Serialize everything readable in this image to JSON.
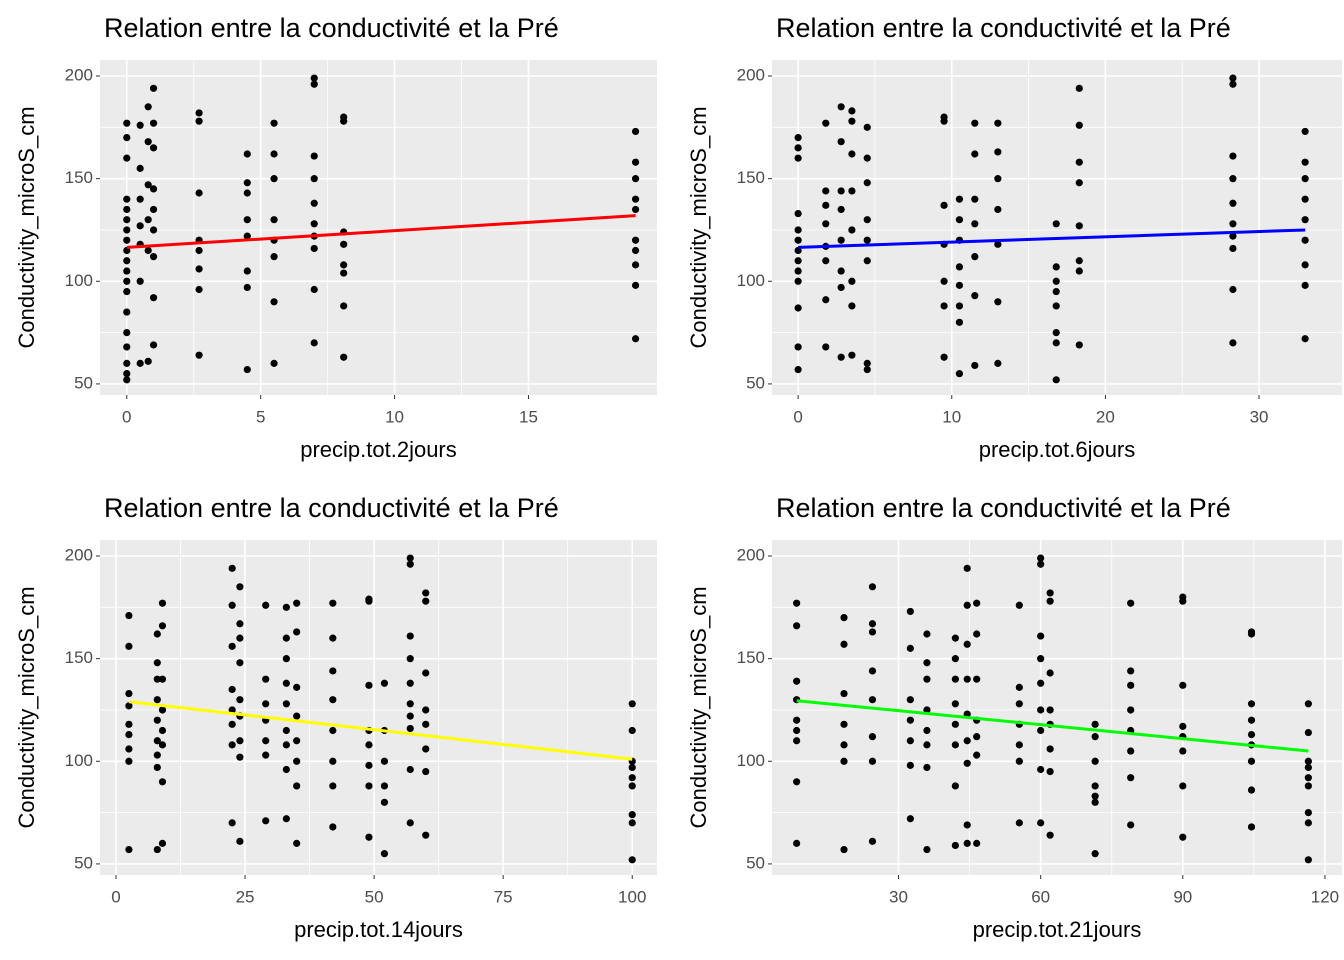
{
  "chart_data": [
    {
      "type": "scatter",
      "title": "Relation entre la conductivité et la Pré",
      "xlabel": "precip.tot.2jours",
      "ylabel": "Conductivity_microS_cm",
      "x": [
        0,
        0,
        0,
        0,
        0,
        0,
        0,
        0,
        0,
        0,
        0,
        0,
        0,
        0,
        0,
        0,
        0,
        0,
        0,
        0.5,
        0.5,
        0.5,
        0.5,
        0.5,
        0.5,
        0.5,
        0.8,
        0.8,
        0.8,
        0.8,
        0.8,
        0.8,
        1,
        1,
        1,
        1,
        1,
        1,
        1,
        1,
        1,
        2.7,
        2.7,
        2.7,
        2.7,
        2.7,
        2.7,
        2.7,
        2.7,
        4.5,
        4.5,
        4.5,
        4.5,
        4.5,
        4.5,
        4.5,
        4.5,
        5.5,
        5.5,
        5.5,
        5.5,
        5.5,
        5.5,
        5.5,
        5.5,
        7,
        7,
        7,
        7,
        7,
        7,
        7,
        7,
        7,
        7,
        8.1,
        8.1,
        8.1,
        8.1,
        8.1,
        8.1,
        8.1,
        8.1,
        19,
        19,
        19,
        19,
        19,
        19,
        19,
        19,
        19,
        19
      ],
      "y": [
        52,
        55,
        60,
        68,
        75,
        85,
        95,
        100,
        105,
        110,
        115,
        120,
        125,
        130,
        135,
        140,
        160,
        170,
        177,
        60,
        100,
        118,
        127,
        140,
        155,
        176,
        185,
        168,
        147,
        130,
        115,
        61,
        194,
        177,
        165,
        145,
        135,
        125,
        112,
        92,
        69,
        182,
        178,
        143,
        120,
        115,
        106,
        96,
        64,
        162,
        148,
        143,
        130,
        122,
        105,
        97,
        57,
        177,
        162,
        150,
        130,
        120,
        112,
        90,
        60,
        199,
        196,
        161,
        150,
        138,
        128,
        122,
        116,
        96,
        70,
        180,
        178,
        124,
        118,
        108,
        104,
        88,
        63,
        173,
        158,
        150,
        140,
        135,
        120,
        115,
        108,
        98,
        72
      ],
      "color": "#000000",
      "fit": {
        "x": [
          0,
          19
        ],
        "y": [
          116.5,
          132
        ],
        "color": "#FF0000"
      },
      "xlim": [
        -1,
        19.8
      ],
      "ylim": [
        44.6,
        207.8
      ],
      "xticks": [
        0,
        5,
        10,
        15
      ],
      "yticks": [
        50,
        100,
        150,
        200
      ],
      "grid": true
    },
    {
      "type": "scatter",
      "title": "Relation entre la conductivité et la Pré",
      "xlabel": "precip.tot.6jours",
      "ylabel": "Conductivity_microS_cm",
      "x": [
        0,
        0,
        0,
        0,
        0,
        0,
        0,
        0,
        0,
        0,
        0,
        0,
        0,
        1.8,
        1.8,
        1.8,
        1.8,
        1.8,
        1.8,
        1.8,
        1.8,
        2.8,
        2.8,
        2.8,
        2.8,
        2.8,
        2.8,
        2.8,
        2.8,
        3.5,
        3.5,
        3.5,
        3.5,
        3.5,
        3.5,
        3.5,
        3.5,
        4.5,
        4.5,
        4.5,
        4.5,
        4.5,
        4.5,
        4.5,
        4.5,
        9.5,
        9.5,
        9.5,
        9.5,
        9.5,
        9.5,
        9.5,
        10.5,
        10.5,
        10.5,
        10.5,
        10.5,
        10.5,
        10.5,
        10.5,
        11.5,
        11.5,
        11.5,
        11.5,
        11.5,
        11.5,
        11.5,
        13,
        13,
        13,
        13,
        13,
        13,
        13,
        16.8,
        16.8,
        16.8,
        16.8,
        16.8,
        16.8,
        16.8,
        16.8,
        18.3,
        18.3,
        18.3,
        18.3,
        18.3,
        18.3,
        18.3,
        18.3,
        28.3,
        28.3,
        28.3,
        28.3,
        28.3,
        28.3,
        28.3,
        28.3,
        28.3,
        28.3,
        33,
        33,
        33,
        33,
        33,
        33,
        33,
        33,
        33
      ],
      "y": [
        57,
        68,
        87,
        100,
        105,
        110,
        115,
        120,
        125,
        133,
        160,
        165,
        170,
        177,
        144,
        137,
        128,
        117,
        110,
        91,
        68,
        185,
        168,
        144,
        135,
        120,
        105,
        97,
        63,
        183,
        178,
        162,
        144,
        125,
        100,
        88,
        64,
        175,
        160,
        148,
        130,
        120,
        110,
        60,
        57,
        180,
        178,
        137,
        118,
        100,
        88,
        63,
        140,
        130,
        120,
        107,
        98,
        88,
        80,
        55,
        177,
        162,
        140,
        128,
        112,
        93,
        59,
        177,
        163,
        150,
        135,
        118,
        90,
        60,
        128,
        107,
        100,
        95,
        88,
        75,
        70,
        52,
        194,
        176,
        158,
        148,
        127,
        110,
        105,
        69,
        199,
        196,
        161,
        150,
        138,
        128,
        122,
        116,
        96,
        70,
        173,
        158,
        150,
        140,
        130,
        120,
        108,
        98,
        72
      ],
      "color": "#000000",
      "fit": {
        "x": [
          0,
          33
        ],
        "y": [
          116.5,
          125
        ],
        "color": "#0000FF"
      },
      "xlim": [
        -1.7,
        35.4
      ],
      "ylim": [
        44.6,
        207.8
      ],
      "xticks": [
        0,
        10,
        20,
        30
      ],
      "yticks": [
        50,
        100,
        150,
        200
      ],
      "grid": true
    },
    {
      "type": "scatter",
      "title": "Relation entre la conductivité et la Pré",
      "xlabel": "precip.tot.14jours",
      "ylabel": "Conductivity_microS_cm",
      "x": [
        2.5,
        2.5,
        2.5,
        2.5,
        2.5,
        2.5,
        2.5,
        2.5,
        2.5,
        8,
        8,
        8,
        8,
        8,
        8,
        8,
        8,
        8,
        9,
        9,
        9,
        9,
        9,
        9,
        9,
        9,
        22.5,
        22.5,
        22.5,
        22.5,
        22.5,
        22.5,
        22.5,
        22.5,
        24,
        24,
        24,
        24,
        24,
        24,
        24,
        24,
        24,
        29,
        29,
        29,
        29,
        29,
        29,
        29,
        33,
        33,
        33,
        33,
        33,
        33,
        33,
        33,
        33,
        35,
        35,
        35,
        35,
        35,
        35,
        35,
        35,
        42,
        42,
        42,
        42,
        42,
        42,
        42,
        42,
        49,
        49,
        49,
        49,
        49,
        49,
        49,
        49,
        52,
        52,
        52,
        52,
        52,
        52,
        57,
        57,
        57,
        57,
        57,
        57,
        57,
        57,
        57,
        57,
        60,
        60,
        60,
        60,
        60,
        60,
        60,
        60,
        100,
        100,
        100,
        100,
        100,
        100,
        100,
        100,
        100
      ],
      "y": [
        171,
        156,
        133,
        127,
        118,
        113,
        106,
        100,
        57,
        162,
        148,
        140,
        130,
        120,
        110,
        103,
        97,
        57,
        177,
        166,
        140,
        125,
        115,
        108,
        90,
        60,
        194,
        176,
        156,
        135,
        125,
        118,
        108,
        70,
        185,
        167,
        160,
        148,
        130,
        122,
        110,
        102,
        61,
        176,
        140,
        128,
        120,
        110,
        103,
        71,
        175,
        160,
        150,
        138,
        128,
        115,
        108,
        96,
        72,
        177,
        163,
        136,
        122,
        110,
        100,
        88,
        60,
        177,
        160,
        144,
        130,
        115,
        100,
        88,
        68,
        179,
        178,
        137,
        115,
        108,
        98,
        88,
        63,
        138,
        115,
        100,
        88,
        80,
        55,
        199,
        196,
        161,
        150,
        138,
        128,
        122,
        116,
        96,
        70,
        182,
        178,
        143,
        125,
        118,
        106,
        95,
        64,
        128,
        115,
        100,
        97,
        92,
        88,
        74,
        70,
        52
      ],
      "color": "#000000",
      "fit": {
        "x": [
          2.5,
          100
        ],
        "y": [
          129,
          101
        ],
        "color": "#FFFF00"
      },
      "xlim": [
        -3.1,
        104.8
      ],
      "ylim": [
        44.6,
        207.8
      ],
      "xticks": [
        0,
        25,
        50,
        75,
        100
      ],
      "yticks": [
        50,
        100,
        150,
        200
      ],
      "grid": true
    },
    {
      "type": "scatter",
      "title": "Relation entre la conductivité et la Pré",
      "xlabel": "precip.tot.21jours",
      "ylabel": "Conductivity_microS_cm",
      "x": [
        8.5,
        8.5,
        8.5,
        8.5,
        8.5,
        8.5,
        8.5,
        8.5,
        8.5,
        18.5,
        18.5,
        18.5,
        18.5,
        18.5,
        18.5,
        18.5,
        24.5,
        24.5,
        24.5,
        24.5,
        24.5,
        24.5,
        24.5,
        24.5,
        32.5,
        32.5,
        32.5,
        32.5,
        32.5,
        32.5,
        32.5,
        36,
        36,
        36,
        36,
        36,
        36,
        36,
        36,
        42,
        42,
        42,
        42,
        42,
        42,
        42,
        42,
        44.5,
        44.5,
        44.5,
        44.5,
        44.5,
        44.5,
        44.5,
        44.5,
        44.5,
        46.5,
        46.5,
        46.5,
        46.5,
        46.5,
        46.5,
        46.5,
        55.5,
        55.5,
        55.5,
        55.5,
        55.5,
        55.5,
        55.5,
        60,
        60,
        60,
        60,
        60,
        60,
        60,
        60,
        60,
        62,
        62,
        62,
        62,
        62,
        62,
        62,
        62,
        71.5,
        71.5,
        71.5,
        71.5,
        71.5,
        71.5,
        71.5,
        79,
        79,
        79,
        79,
        79,
        79,
        79,
        79,
        90,
        90,
        90,
        90,
        90,
        90,
        90,
        90,
        104.5,
        104.5,
        104.5,
        104.5,
        104.5,
        104.5,
        104.5,
        104.5,
        104.5,
        116.5,
        116.5,
        116.5,
        116.5,
        116.5,
        116.5,
        116.5,
        116.5,
        116.5
      ],
      "y": [
        177,
        166,
        139,
        130,
        120,
        115,
        110,
        90,
        60,
        170,
        157,
        133,
        118,
        108,
        100,
        57,
        185,
        167,
        163,
        144,
        130,
        112,
        100,
        61,
        173,
        155,
        130,
        120,
        110,
        98,
        72,
        162,
        148,
        140,
        125,
        115,
        108,
        97,
        57,
        160,
        150,
        140,
        128,
        118,
        108,
        88,
        59,
        194,
        176,
        157,
        140,
        123,
        110,
        99,
        69,
        60,
        177,
        162,
        140,
        120,
        112,
        103,
        60,
        176,
        136,
        128,
        118,
        108,
        100,
        70,
        199,
        196,
        161,
        150,
        138,
        125,
        115,
        96,
        70,
        182,
        178,
        143,
        125,
        118,
        106,
        95,
        64,
        118,
        112,
        100,
        88,
        83,
        80,
        55,
        177,
        144,
        137,
        125,
        115,
        105,
        92,
        69,
        180,
        178,
        137,
        117,
        112,
        105,
        88,
        63,
        163,
        162,
        128,
        120,
        113,
        108,
        100,
        86,
        68,
        128,
        114,
        100,
        97,
        92,
        88,
        75,
        70,
        52
      ],
      "color": "#000000",
      "fit": {
        "x": [
          8.5,
          116.5
        ],
        "y": [
          129.5,
          105
        ],
        "color": "#00FF00"
      },
      "xlim": [
        3.3,
        123.6
      ],
      "ylim": [
        44.6,
        207.8
      ],
      "xticks": [
        30,
        60,
        90,
        120
      ],
      "yticks": [
        50,
        100,
        150,
        200
      ],
      "grid": true
    }
  ]
}
